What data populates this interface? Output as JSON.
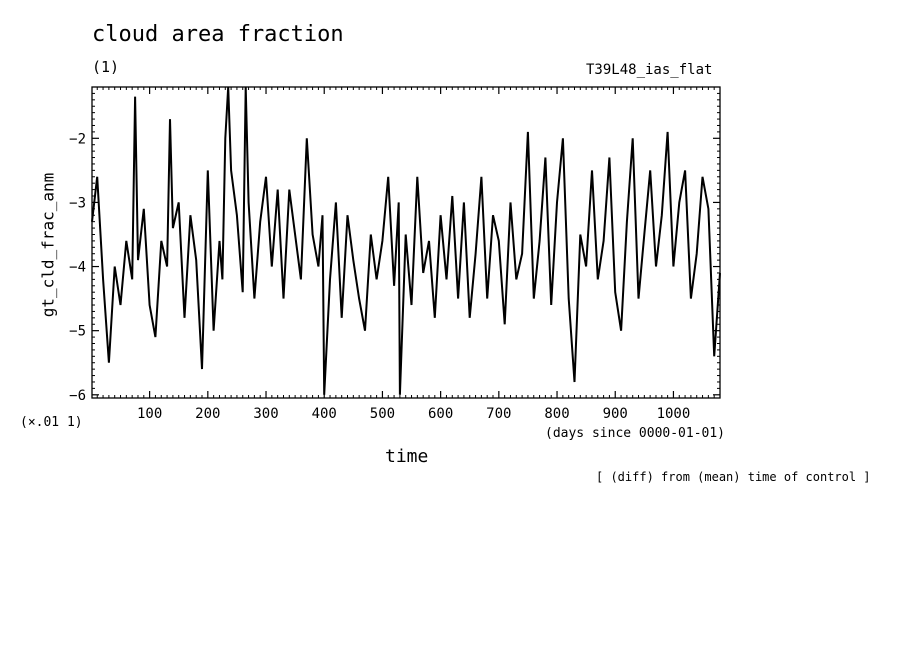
{
  "title": "cloud area fraction",
  "unit": "(1)",
  "run_name": "T39L48_ias_flat",
  "y_multiplier": "(×.01 1)",
  "x_units": "(days since 0000-01-01)",
  "x_label": "time",
  "note": "[ (diff) from (mean) time of control ]",
  "chart_data": {
    "type": "line",
    "title": "cloud area fraction",
    "xlabel": "time",
    "ylabel": "gt_cld_frac_anm",
    "xlim": [
      1,
      1080
    ],
    "ylim": [
      -6.05,
      -1.2
    ],
    "x_ticks": [
      100,
      200,
      300,
      400,
      500,
      600,
      700,
      800,
      900,
      1000
    ],
    "y_ticks": [
      -6,
      -5,
      -4,
      -3,
      -2
    ],
    "x_tick_labels": [
      "100",
      "200",
      "300",
      "400",
      "500",
      "600",
      "700",
      "800",
      "900",
      "1000"
    ],
    "y_tick_labels": [
      "−6",
      "−5",
      "−4",
      "−3",
      "−2"
    ],
    "grid": false,
    "series": [
      {
        "color": "#000000",
        "x": [
          1,
          10,
          20,
          30,
          40,
          50,
          60,
          70,
          75,
          80,
          90,
          100,
          110,
          120,
          130,
          135,
          140,
          150,
          160,
          170,
          180,
          190,
          200,
          210,
          220,
          225,
          230,
          235,
          240,
          250,
          260,
          265,
          270,
          280,
          290,
          300,
          310,
          320,
          330,
          340,
          350,
          360,
          370,
          380,
          390,
          397,
          400,
          410,
          420,
          430,
          440,
          450,
          460,
          470,
          480,
          490,
          500,
          510,
          520,
          528,
          530,
          540,
          550,
          560,
          570,
          580,
          590,
          600,
          610,
          620,
          630,
          640,
          650,
          660,
          670,
          680,
          690,
          700,
          710,
          720,
          730,
          740,
          750,
          760,
          770,
          780,
          790,
          800,
          810,
          820,
          830,
          840,
          850,
          860,
          870,
          880,
          890,
          900,
          910,
          920,
          930,
          940,
          950,
          960,
          970,
          980,
          990,
          1000,
          1010,
          1020,
          1030,
          1040,
          1050,
          1060,
          1070,
          1080
        ],
        "y": [
          -3.3,
          -2.6,
          -4.2,
          -5.5,
          -4.0,
          -4.6,
          -3.6,
          -4.2,
          -1.35,
          -3.9,
          -3.1,
          -4.6,
          -5.1,
          -3.6,
          -4.0,
          -1.7,
          -3.4,
          -3.0,
          -4.8,
          -3.2,
          -3.9,
          -5.6,
          -2.5,
          -5.0,
          -3.6,
          -4.2,
          -2.0,
          -1.2,
          -2.5,
          -3.2,
          -4.4,
          -1.2,
          -3.0,
          -4.5,
          -3.3,
          -2.6,
          -4.0,
          -2.8,
          -4.5,
          -2.8,
          -3.5,
          -4.2,
          -2.0,
          -3.5,
          -4.0,
          -3.2,
          -6.0,
          -4.2,
          -3.0,
          -4.8,
          -3.2,
          -3.9,
          -4.5,
          -5.0,
          -3.5,
          -4.2,
          -3.6,
          -2.6,
          -4.3,
          -3.0,
          -6.0,
          -3.5,
          -4.6,
          -2.6,
          -4.1,
          -3.6,
          -4.8,
          -3.2,
          -4.2,
          -2.9,
          -4.5,
          -3.0,
          -4.8,
          -3.8,
          -2.6,
          -4.5,
          -3.2,
          -3.6,
          -4.9,
          -3.0,
          -4.2,
          -3.8,
          -1.9,
          -4.5,
          -3.6,
          -2.3,
          -4.6,
          -3.0,
          -2.0,
          -4.5,
          -5.8,
          -3.5,
          -4.0,
          -2.5,
          -4.2,
          -3.6,
          -2.3,
          -4.4,
          -5.0,
          -3.3,
          -2.0,
          -4.5,
          -3.5,
          -2.5,
          -4.0,
          -3.2,
          -1.9,
          -4.0,
          -3.0,
          -2.5,
          -4.5,
          -3.8,
          -2.6,
          -3.1,
          -5.4,
          -4.1
        ]
      }
    ]
  }
}
